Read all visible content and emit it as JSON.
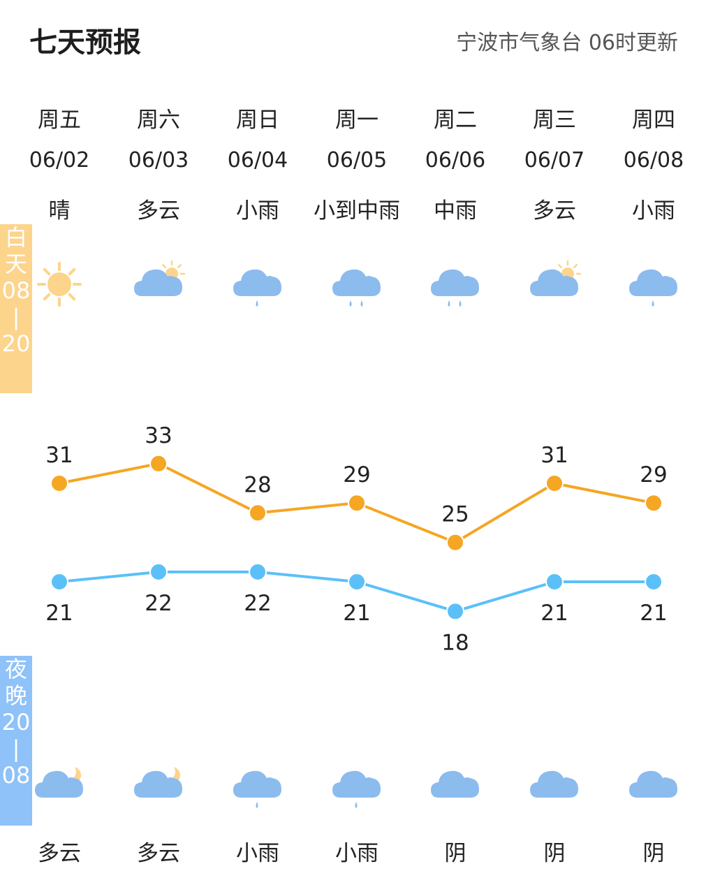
{
  "header": {
    "title": "七天预报",
    "source": "宁波市气象台 06时更新"
  },
  "labels": {
    "day_band": [
      "白",
      "天",
      "08",
      "|",
      "20"
    ],
    "night_band": [
      "夜",
      "晚",
      "20",
      "|",
      "08"
    ]
  },
  "days": [
    {
      "weekday": "周五",
      "date": "06/02",
      "day_weather": "晴",
      "day_icon": "sunny-icon",
      "night_weather": "多云",
      "night_icon": "cloud-moon-icon"
    },
    {
      "weekday": "周六",
      "date": "06/03",
      "day_weather": "多云",
      "day_icon": "cloud-sun-icon",
      "night_weather": "多云",
      "night_icon": "cloud-moon-icon"
    },
    {
      "weekday": "周日",
      "date": "06/04",
      "day_weather": "小雨",
      "day_icon": "light-rain-icon",
      "night_weather": "小雨",
      "night_icon": "light-rain-icon"
    },
    {
      "weekday": "周一",
      "date": "06/05",
      "day_weather": "小到中雨",
      "day_icon": "light-to-moderate-rain-icon",
      "night_weather": "小雨",
      "night_icon": "light-rain-icon"
    },
    {
      "weekday": "周二",
      "date": "06/06",
      "day_weather": "中雨",
      "day_icon": "moderate-rain-icon",
      "night_weather": "阴",
      "night_icon": "overcast-icon"
    },
    {
      "weekday": "周三",
      "date": "06/07",
      "day_weather": "多云",
      "day_icon": "cloud-sun-icon",
      "night_weather": "阴",
      "night_icon": "overcast-icon"
    },
    {
      "weekday": "周四",
      "date": "06/08",
      "day_weather": "小雨",
      "day_icon": "light-rain-icon",
      "night_weather": "阴",
      "night_icon": "overcast-icon"
    }
  ],
  "chart_data": {
    "type": "line",
    "categories": [
      "06/02",
      "06/03",
      "06/04",
      "06/05",
      "06/06",
      "06/07",
      "06/08"
    ],
    "series": [
      {
        "values": [
          31,
          33,
          28,
          29,
          25,
          31,
          29
        ],
        "color": "#f5a623"
      },
      {
        "values": [
          21,
          22,
          22,
          21,
          18,
          21,
          21
        ],
        "color": "#5bc0f8"
      }
    ],
    "grid": false,
    "legend": "none"
  }
}
